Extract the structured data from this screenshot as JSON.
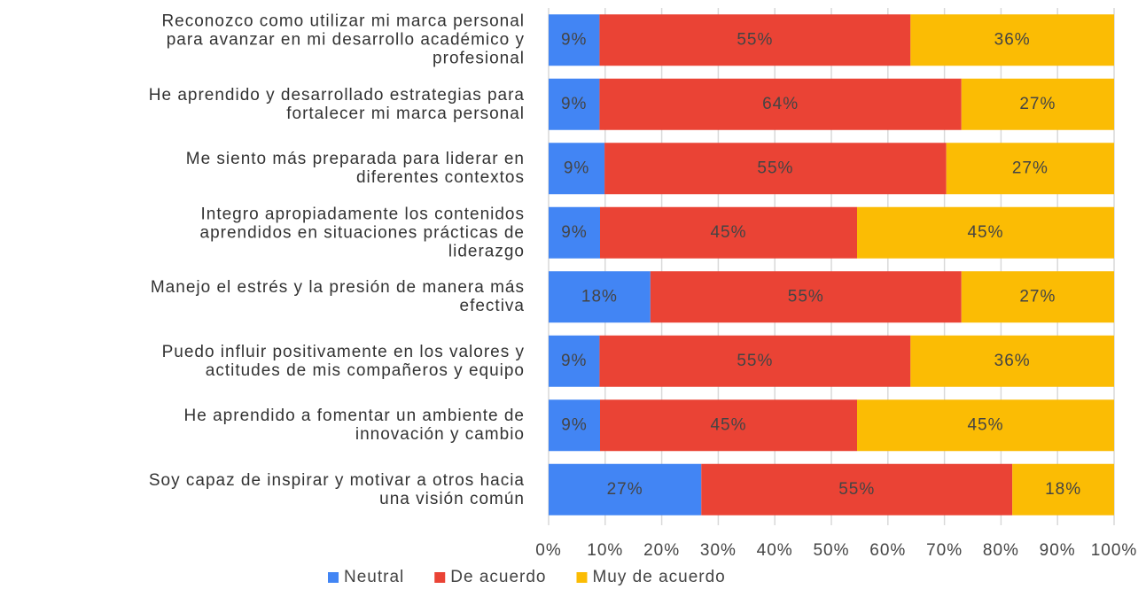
{
  "chart_data": {
    "type": "bar",
    "orientation": "horizontal",
    "stack": "percent",
    "categories": [
      "Reconozco como utilizar mi marca personal\npara avanzar en mi desarrollo académico y\nprofesional",
      "He aprendido y desarrollado estrategias para\nfortalecer mi marca personal",
      "Me siento más preparada para liderar en\ndiferentes contextos",
      "Integro apropiadamente los contenidos\naprendidos en situaciones prácticas de\nliderazgo",
      "Manejo el estrés y la presión de manera más\nefectiva",
      "Puedo influir positivamente en los valores y\nactitudes de mis compañeros y equipo",
      "He aprendido a fomentar un ambiente de\ninnovación y cambio",
      "Soy capaz de inspirar y motivar a otros hacia\nuna visión común"
    ],
    "series": [
      {
        "name": "Neutral",
        "color": "#4285f4",
        "values": [
          9,
          9,
          9,
          9,
          18,
          9,
          9,
          27
        ],
        "value_labels": [
          "9%",
          "9%",
          "9%",
          "9%",
          "18%",
          "9%",
          "9%",
          "27%"
        ]
      },
      {
        "name": "De acuerdo",
        "color": "#ea4335",
        "values": [
          55,
          64,
          55,
          45,
          55,
          55,
          45,
          55
        ],
        "value_labels": [
          "55%",
          "64%",
          "55%",
          "45%",
          "55%",
          "55%",
          "45%",
          "55%"
        ]
      },
      {
        "name": "Muy de acuerdo",
        "color": "#fbbc04",
        "values": [
          36,
          27,
          27,
          45,
          27,
          36,
          45,
          18
        ],
        "value_labels": [
          "36%",
          "27%",
          "27%",
          "45%",
          "27%",
          "36%",
          "45%",
          "18%"
        ]
      }
    ],
    "xlim": [
      0,
      100
    ],
    "xticks": [
      {
        "value": 0,
        "label": "0%"
      },
      {
        "value": 10,
        "label": "10%"
      },
      {
        "value": 20,
        "label": "20%"
      },
      {
        "value": 30,
        "label": "30%"
      },
      {
        "value": 40,
        "label": "40%"
      },
      {
        "value": 50,
        "label": "50%"
      },
      {
        "value": 60,
        "label": "60%"
      },
      {
        "value": 70,
        "label": "70%"
      },
      {
        "value": 80,
        "label": "80%"
      },
      {
        "value": 90,
        "label": "90%"
      },
      {
        "value": 100,
        "label": "100%"
      }
    ],
    "grid": true,
    "legend": "bottom"
  }
}
